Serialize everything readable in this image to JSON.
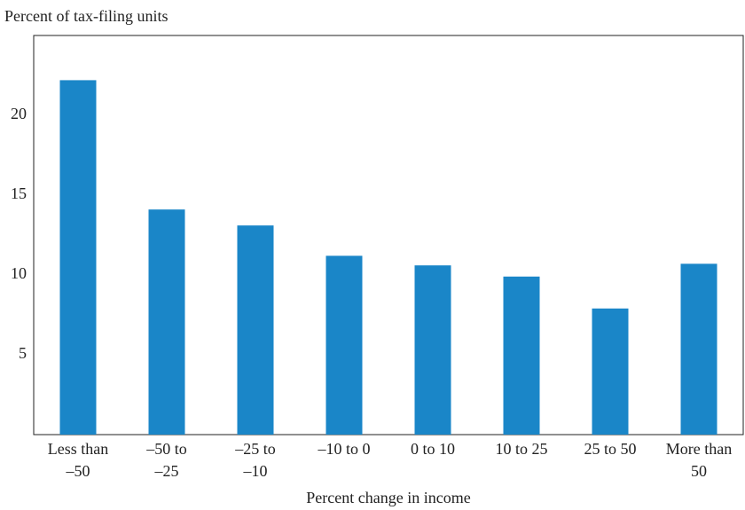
{
  "chart_data": {
    "type": "bar",
    "y_label": "Percent of tax-filing units",
    "x_label": "Percent change in income",
    "categories": [
      [
        "Less than",
        "–50"
      ],
      [
        "–50 to",
        "–25"
      ],
      [
        "–25 to",
        "–10"
      ],
      [
        "–10 to 0"
      ],
      [
        "0 to 10"
      ],
      [
        "10 to 25"
      ],
      [
        "25 to 50"
      ],
      [
        "More than",
        "50"
      ]
    ],
    "values": [
      22.2,
      14.1,
      13.1,
      11.2,
      10.6,
      9.9,
      7.9,
      10.7
    ],
    "color": "#1a86c8",
    "ylim": [
      0,
      25
    ],
    "yticks": [
      5,
      10,
      15,
      20
    ],
    "grid": false
  }
}
